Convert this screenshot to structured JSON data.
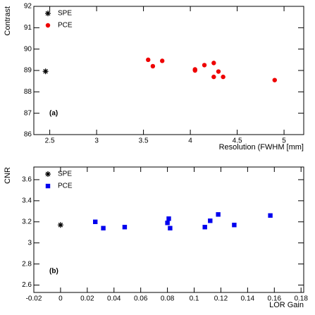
{
  "chart_data": [
    {
      "type": "scatter",
      "annotation": "(a)",
      "xlabel": "Resolution (FWHM [mm]",
      "ylabel": "Contrast",
      "xlim": [
        2.33,
        5.21
      ],
      "xticks": [
        2.5,
        3,
        3.5,
        4,
        4.5,
        5
      ],
      "ylim": [
        86,
        92
      ],
      "yticks": [
        86,
        87,
        88,
        89,
        90,
        91,
        92
      ],
      "legend": "top-left",
      "series": [
        {
          "name": "SPE",
          "color": "#000000",
          "marker": "star",
          "x": [
            2.455
          ],
          "values": [
            88.96
          ]
        },
        {
          "name": "PCE",
          "color": "#ee0000",
          "marker": "circle",
          "x": [
            3.55,
            3.6,
            3.7,
            4.05,
            4.05,
            4.15,
            4.25,
            4.3,
            4.25,
            4.35,
            4.9
          ],
          "values": [
            89.5,
            89.2,
            89.45,
            89.05,
            89.0,
            89.25,
            89.35,
            88.95,
            88.7,
            88.7,
            88.55
          ]
        }
      ]
    },
    {
      "type": "scatter",
      "annotation": "(b)",
      "xlabel": "LOR Gain",
      "ylabel": "CNR",
      "xlim": [
        -0.02,
        0.182
      ],
      "xticks": [
        -0.02,
        0,
        0.02,
        0.04,
        0.06,
        0.08,
        0.1,
        0.12,
        0.14,
        0.16,
        0.18
      ],
      "ylim": [
        2.53,
        3.72
      ],
      "yticks": [
        2.6,
        2.8,
        3,
        3.2,
        3.4,
        3.6
      ],
      "legend": "top-left",
      "series": [
        {
          "name": "SPE",
          "color": "#000000",
          "marker": "star",
          "x": [
            0
          ],
          "values": [
            3.17
          ]
        },
        {
          "name": "PCE",
          "color": "#0000ee",
          "marker": "square",
          "x": [
            0.026,
            0.032,
            0.048,
            0.08,
            0.081,
            0.082,
            0.108,
            0.112,
            0.118,
            0.13,
            0.157
          ],
          "values": [
            3.2,
            3.14,
            3.15,
            3.19,
            3.23,
            3.14,
            3.15,
            3.21,
            3.27,
            3.17,
            3.26
          ]
        }
      ]
    }
  ]
}
